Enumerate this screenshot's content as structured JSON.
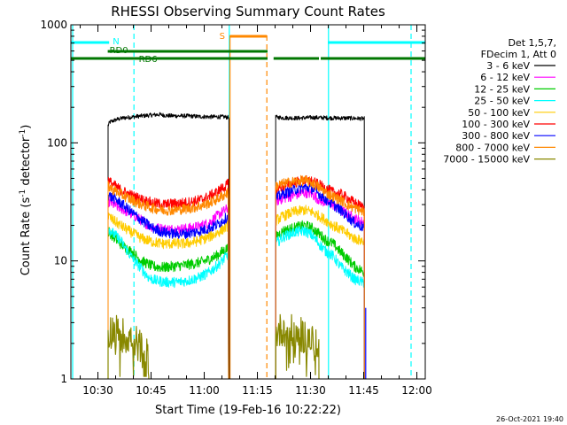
{
  "chart_data": {
    "type": "line",
    "title": "RHESSI Observing Summary Count Rates",
    "xlabel": "Start Time (19-Feb-16 10:22:22)",
    "ylabel_main": "Count Rate (s",
    "ylabel_sup": "-1",
    "ylabel_tail": " detector",
    "ylabel_close": ")",
    "y_scale": "log",
    "ylim": [
      1,
      1000
    ],
    "xlim_minutes": [
      0,
      100
    ],
    "x_ticks": [
      {
        "t": 7.63,
        "label": "10:30"
      },
      {
        "t": 22.63,
        "label": "10:45"
      },
      {
        "t": 37.63,
        "label": "11:00"
      },
      {
        "t": 52.63,
        "label": "11:15"
      },
      {
        "t": 67.63,
        "label": "11:30"
      },
      {
        "t": 82.63,
        "label": "11:45"
      },
      {
        "t": 97.63,
        "label": "12:00"
      }
    ],
    "y_ticks": [
      {
        "v": 1,
        "label": "1"
      },
      {
        "v": 10,
        "label": "10"
      },
      {
        "v": 100,
        "label": "100"
      },
      {
        "v": 1000,
        "label": "1000"
      }
    ],
    "legend_position": "right",
    "legend_header": [
      "Det 1,5,7,",
      "FDecim 1, Att 0"
    ],
    "series": [
      {
        "name": "3 - 6 keV",
        "color": "#000000",
        "seg1": [
          [
            10.5,
            140
          ],
          [
            11,
            150
          ],
          [
            13,
            158
          ],
          [
            15,
            163
          ],
          [
            17,
            165
          ],
          [
            19,
            168
          ],
          [
            21,
            170
          ],
          [
            23,
            172
          ],
          [
            25,
            174
          ],
          [
            27,
            170
          ],
          [
            30,
            169
          ],
          [
            33,
            169
          ],
          [
            36,
            167
          ],
          [
            39,
            166
          ],
          [
            43,
            166
          ],
          [
            44.7,
            164
          ]
        ],
        "seg2": [
          [
            57.8,
            165
          ],
          [
            60,
            163
          ],
          [
            64,
            162
          ],
          [
            68,
            164
          ],
          [
            72,
            163
          ],
          [
            75,
            162
          ],
          [
            78,
            162
          ],
          [
            81,
            161
          ],
          [
            82.8,
            160
          ]
        ]
      },
      {
        "name": "6 - 12 keV",
        "color": "#ff00ff",
        "seg1": [
          [
            10.5,
            32
          ],
          [
            12,
            30
          ],
          [
            14,
            28
          ],
          [
            17,
            25
          ],
          [
            20,
            22
          ],
          [
            22,
            20
          ],
          [
            24,
            19
          ],
          [
            27,
            18.5
          ],
          [
            30,
            18.5
          ],
          [
            33,
            18.8
          ],
          [
            36,
            19.5
          ],
          [
            39,
            21
          ],
          [
            42,
            25
          ],
          [
            44.5,
            28
          ]
        ],
        "seg2": [
          [
            57.8,
            32
          ],
          [
            60,
            34
          ],
          [
            63,
            36
          ],
          [
            66,
            38
          ],
          [
            68,
            37
          ],
          [
            70,
            33
          ],
          [
            72,
            31
          ],
          [
            74,
            30
          ],
          [
            76,
            27
          ],
          [
            78,
            25
          ],
          [
            80,
            23
          ],
          [
            82.8,
            21
          ]
        ]
      },
      {
        "name": "12 - 25 keV",
        "color": "#00cc00",
        "seg1": [
          [
            10.5,
            18
          ],
          [
            12,
            16
          ],
          [
            14,
            14
          ],
          [
            17,
            12
          ],
          [
            20,
            10
          ],
          [
            23,
            9
          ],
          [
            26,
            8.8
          ],
          [
            29,
            9
          ],
          [
            32,
            9.2
          ],
          [
            35,
            9.5
          ],
          [
            38,
            10
          ],
          [
            41,
            11
          ],
          [
            44.5,
            13
          ]
        ],
        "seg2": [
          [
            57.8,
            16
          ],
          [
            60,
            18
          ],
          [
            63,
            19
          ],
          [
            66,
            20
          ],
          [
            68,
            19
          ],
          [
            70,
            17
          ],
          [
            72,
            15
          ],
          [
            74,
            14
          ],
          [
            76,
            12
          ],
          [
            78,
            10.5
          ],
          [
            80,
            9
          ],
          [
            82.8,
            8
          ]
        ]
      },
      {
        "name": "25 - 50 keV",
        "color": "#00ffff",
        "seg1": [
          [
            10.5,
            19
          ],
          [
            12,
            17
          ],
          [
            14,
            15
          ],
          [
            16,
            12
          ],
          [
            18,
            10
          ],
          [
            20,
            8.5
          ],
          [
            22,
            7.2
          ],
          [
            24,
            6.8
          ],
          [
            27,
            6.6
          ],
          [
            30,
            6.6
          ],
          [
            33,
            6.8
          ],
          [
            36,
            7.2
          ],
          [
            39,
            8
          ],
          [
            42,
            9.5
          ],
          [
            44.5,
            11.5
          ]
        ],
        "seg2": [
          [
            57.8,
            14
          ],
          [
            60,
            16
          ],
          [
            63,
            17.5
          ],
          [
            66,
            18
          ],
          [
            68,
            16.5
          ],
          [
            70,
            14
          ],
          [
            72,
            12
          ],
          [
            74,
            11
          ],
          [
            76,
            9
          ],
          [
            78,
            8
          ],
          [
            80,
            7
          ],
          [
            82.8,
            6.5
          ]
        ]
      },
      {
        "name": "50 - 100 keV",
        "color": "#ffcc00",
        "seg1": [
          [
            10.5,
            24
          ],
          [
            12,
            22
          ],
          [
            14,
            20
          ],
          [
            17,
            17.5
          ],
          [
            20,
            15.5
          ],
          [
            23,
            14.5
          ],
          [
            26,
            14
          ],
          [
            29,
            14
          ],
          [
            32,
            14
          ],
          [
            35,
            14.5
          ],
          [
            38,
            15.5
          ],
          [
            41,
            17
          ],
          [
            44.5,
            20
          ]
        ],
        "seg2": [
          [
            57.8,
            22
          ],
          [
            60,
            24
          ],
          [
            63,
            26
          ],
          [
            66,
            27
          ],
          [
            68,
            26
          ],
          [
            70,
            24
          ],
          [
            72,
            22
          ],
          [
            74,
            20
          ],
          [
            76,
            18.5
          ],
          [
            78,
            17
          ],
          [
            80,
            15.5
          ],
          [
            82.8,
            14.5
          ]
        ]
      },
      {
        "name": "100 - 300 keV",
        "color": "#ff0000",
        "seg1": [
          [
            10.5,
            48
          ],
          [
            12,
            44
          ],
          [
            14,
            40
          ],
          [
            17,
            36
          ],
          [
            20,
            33
          ],
          [
            23,
            31
          ],
          [
            26,
            30
          ],
          [
            29,
            30.5
          ],
          [
            32,
            31
          ],
          [
            35,
            32
          ],
          [
            38,
            34
          ],
          [
            41,
            38
          ],
          [
            44.5,
            45
          ]
        ],
        "seg2": [
          [
            57.8,
            40
          ],
          [
            60,
            43
          ],
          [
            63,
            46
          ],
          [
            66,
            48
          ],
          [
            68,
            47
          ],
          [
            70,
            44
          ],
          [
            72,
            41
          ],
          [
            74,
            38
          ],
          [
            76,
            37
          ],
          [
            78,
            34
          ],
          [
            80,
            31
          ],
          [
            82.8,
            28
          ]
        ]
      },
      {
        "name": "300 - 800 keV",
        "color": "#0000ff",
        "seg1": [
          [
            10.5,
            36
          ],
          [
            12,
            34
          ],
          [
            14,
            31
          ],
          [
            17,
            26
          ],
          [
            20,
            22
          ],
          [
            23,
            19
          ],
          [
            26,
            17.5
          ],
          [
            29,
            17
          ],
          [
            32,
            17
          ],
          [
            35,
            17.5
          ],
          [
            38,
            18.5
          ],
          [
            41,
            20
          ],
          [
            44.5,
            24
          ]
        ],
        "seg2": [
          [
            57.8,
            34
          ],
          [
            60,
            37
          ],
          [
            63,
            40
          ],
          [
            66,
            42
          ],
          [
            68,
            41
          ],
          [
            70,
            37
          ],
          [
            72,
            33
          ],
          [
            74,
            30
          ],
          [
            76,
            27
          ],
          [
            78,
            24
          ],
          [
            80,
            21
          ],
          [
            82.8,
            19
          ]
        ]
      },
      {
        "name": "800 - 7000 keV",
        "color": "#ff8800",
        "seg1": [
          [
            10.5,
            43
          ],
          [
            12,
            40
          ],
          [
            14,
            37
          ],
          [
            17,
            33
          ],
          [
            20,
            30
          ],
          [
            23,
            28
          ],
          [
            26,
            27
          ],
          [
            29,
            27
          ],
          [
            32,
            27.5
          ],
          [
            35,
            28.5
          ],
          [
            38,
            30
          ],
          [
            41,
            33
          ],
          [
            44.5,
            38
          ]
        ],
        "seg2": [
          [
            57.8,
            43
          ],
          [
            60,
            45
          ],
          [
            63,
            47
          ],
          [
            66,
            48
          ],
          [
            68,
            46
          ],
          [
            70,
            42
          ],
          [
            72,
            38
          ],
          [
            74,
            35
          ],
          [
            76,
            33
          ],
          [
            78,
            30
          ],
          [
            80,
            28
          ],
          [
            82.8,
            26
          ]
        ]
      },
      {
        "name": "7000 - 15000 keV",
        "color": "#888800",
        "seg1": [
          [
            10.5,
            2.5
          ],
          [
            12,
            2.6
          ],
          [
            14,
            2.4
          ],
          [
            16,
            2.3
          ],
          [
            18,
            2.1
          ],
          [
            20,
            1.8
          ],
          [
            22,
            1.5
          ]
        ],
        "seg2": [
          [
            57.8,
            2.4
          ],
          [
            60,
            2.7
          ],
          [
            62,
            2.5
          ],
          [
            64,
            2.4
          ],
          [
            66,
            2.3
          ],
          [
            68,
            2.1
          ],
          [
            70,
            1.7
          ]
        ]
      }
    ],
    "annotations": {
      "N": [
        [
          0,
          10.8
        ],
        [
          72.5,
          100
        ]
      ],
      "RD0": [
        10.4,
        55.5
      ],
      "RD6": [
        [
          0,
          55.5
        ],
        [
          57.2,
          70
        ],
        [
          70.5,
          100
        ]
      ],
      "S": [
        44.9,
        55.3
      ],
      "vlines_cyan_solid": [
        0.5,
        44.7,
        72.7
      ],
      "vlines_cyan_dashed": [
        17.8,
        96
      ],
      "vlines_orange_solid": [
        44.9
      ],
      "vlines_orange_dashed": [
        55.3
      ],
      "vline_blue": [
        83.2
      ]
    },
    "annotation_labels": {
      "N": "N",
      "RD0": "RD0",
      "RD6": "RD6",
      "S": "S"
    },
    "colors": {
      "N": "#00ffff",
      "RD": "#007700",
      "S": "#ff8800",
      "blue": "#0000ff",
      "frame": "#000000"
    }
  },
  "footer": {
    "datestamp": "26-Oct-2021 19:40"
  }
}
